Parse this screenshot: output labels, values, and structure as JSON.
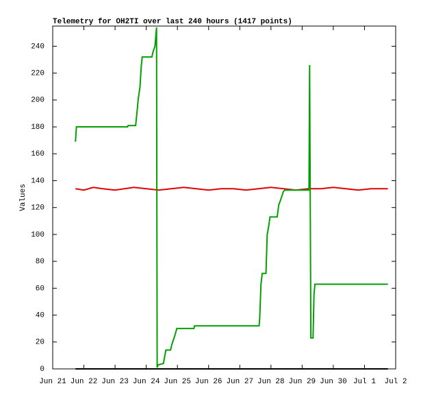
{
  "chart_data": {
    "type": "line",
    "title": "Telemetry for OH2TI over last 240 hours (1417 points)",
    "y_label": "Values",
    "xlim": [
      21,
      32
    ],
    "ylim": [
      0,
      255
    ],
    "xticks": [
      {
        "value": 21,
        "label": "Jun 21"
      },
      {
        "value": 22,
        "label": "Jun 22"
      },
      {
        "value": 23,
        "label": "Jun 23"
      },
      {
        "value": 24,
        "label": "Jun 24"
      },
      {
        "value": 25,
        "label": "Jun 25"
      },
      {
        "value": 26,
        "label": "Jun 26"
      },
      {
        "value": 27,
        "label": "Jun 27"
      },
      {
        "value": 28,
        "label": "Jun 28"
      },
      {
        "value": 29,
        "label": "Jun 29"
      },
      {
        "value": 30,
        "label": "Jun 30"
      },
      {
        "value": 31,
        "label": "Jul 1"
      },
      {
        "value": 32,
        "label": "Jul 2"
      }
    ],
    "yticks": [
      0,
      20,
      40,
      60,
      80,
      100,
      120,
      140,
      160,
      180,
      200,
      220,
      240
    ],
    "grid": false,
    "series": [
      {
        "color": "#00a000",
        "x": [
          21.73,
          21.76,
          23.4,
          23.42,
          23.66,
          23.7,
          23.74,
          23.8,
          23.84,
          23.87,
          24.18,
          24.22,
          24.28,
          24.33,
          24.35,
          24.38,
          24.55,
          24.63,
          24.78,
          24.82,
          24.92,
          24.98,
          25.53,
          25.55,
          27.62,
          27.64,
          27.68,
          27.72,
          27.84,
          27.88,
          27.92,
          27.97,
          28.2,
          28.25,
          28.3,
          28.4,
          28.45,
          29.22,
          29.24,
          29.26,
          29.28,
          29.35,
          29.38,
          29.41,
          31.75
        ],
        "values": [
          169,
          180,
          180,
          181,
          181,
          190,
          200,
          210,
          225,
          232,
          232,
          236,
          240,
          254,
          1,
          3,
          4,
          14,
          14,
          18,
          25,
          30,
          30,
          32,
          32,
          38,
          63,
          71,
          71,
          100,
          105,
          113,
          113,
          122,
          125,
          132,
          133,
          133,
          226,
          125,
          23,
          23,
          55,
          63,
          63
        ]
      },
      {
        "color": "#e00000",
        "x": [
          21.73,
          22.0,
          22.3,
          22.6,
          23.0,
          23.3,
          23.6,
          24.0,
          24.4,
          24.8,
          25.2,
          25.6,
          26.0,
          26.4,
          26.8,
          27.2,
          27.6,
          28.0,
          28.4,
          28.8,
          29.2,
          29.6,
          30.0,
          30.4,
          30.8,
          31.2,
          31.75
        ],
        "values": [
          134,
          133,
          135,
          134,
          133,
          134,
          135,
          134,
          133,
          134,
          135,
          134,
          133,
          134,
          134,
          133,
          134,
          135,
          134,
          133,
          134,
          134,
          135,
          134,
          133,
          134,
          134
        ]
      },
      {
        "color": "#000000",
        "x": [
          21.73,
          31.75
        ],
        "values": [
          0,
          0
        ]
      }
    ]
  }
}
